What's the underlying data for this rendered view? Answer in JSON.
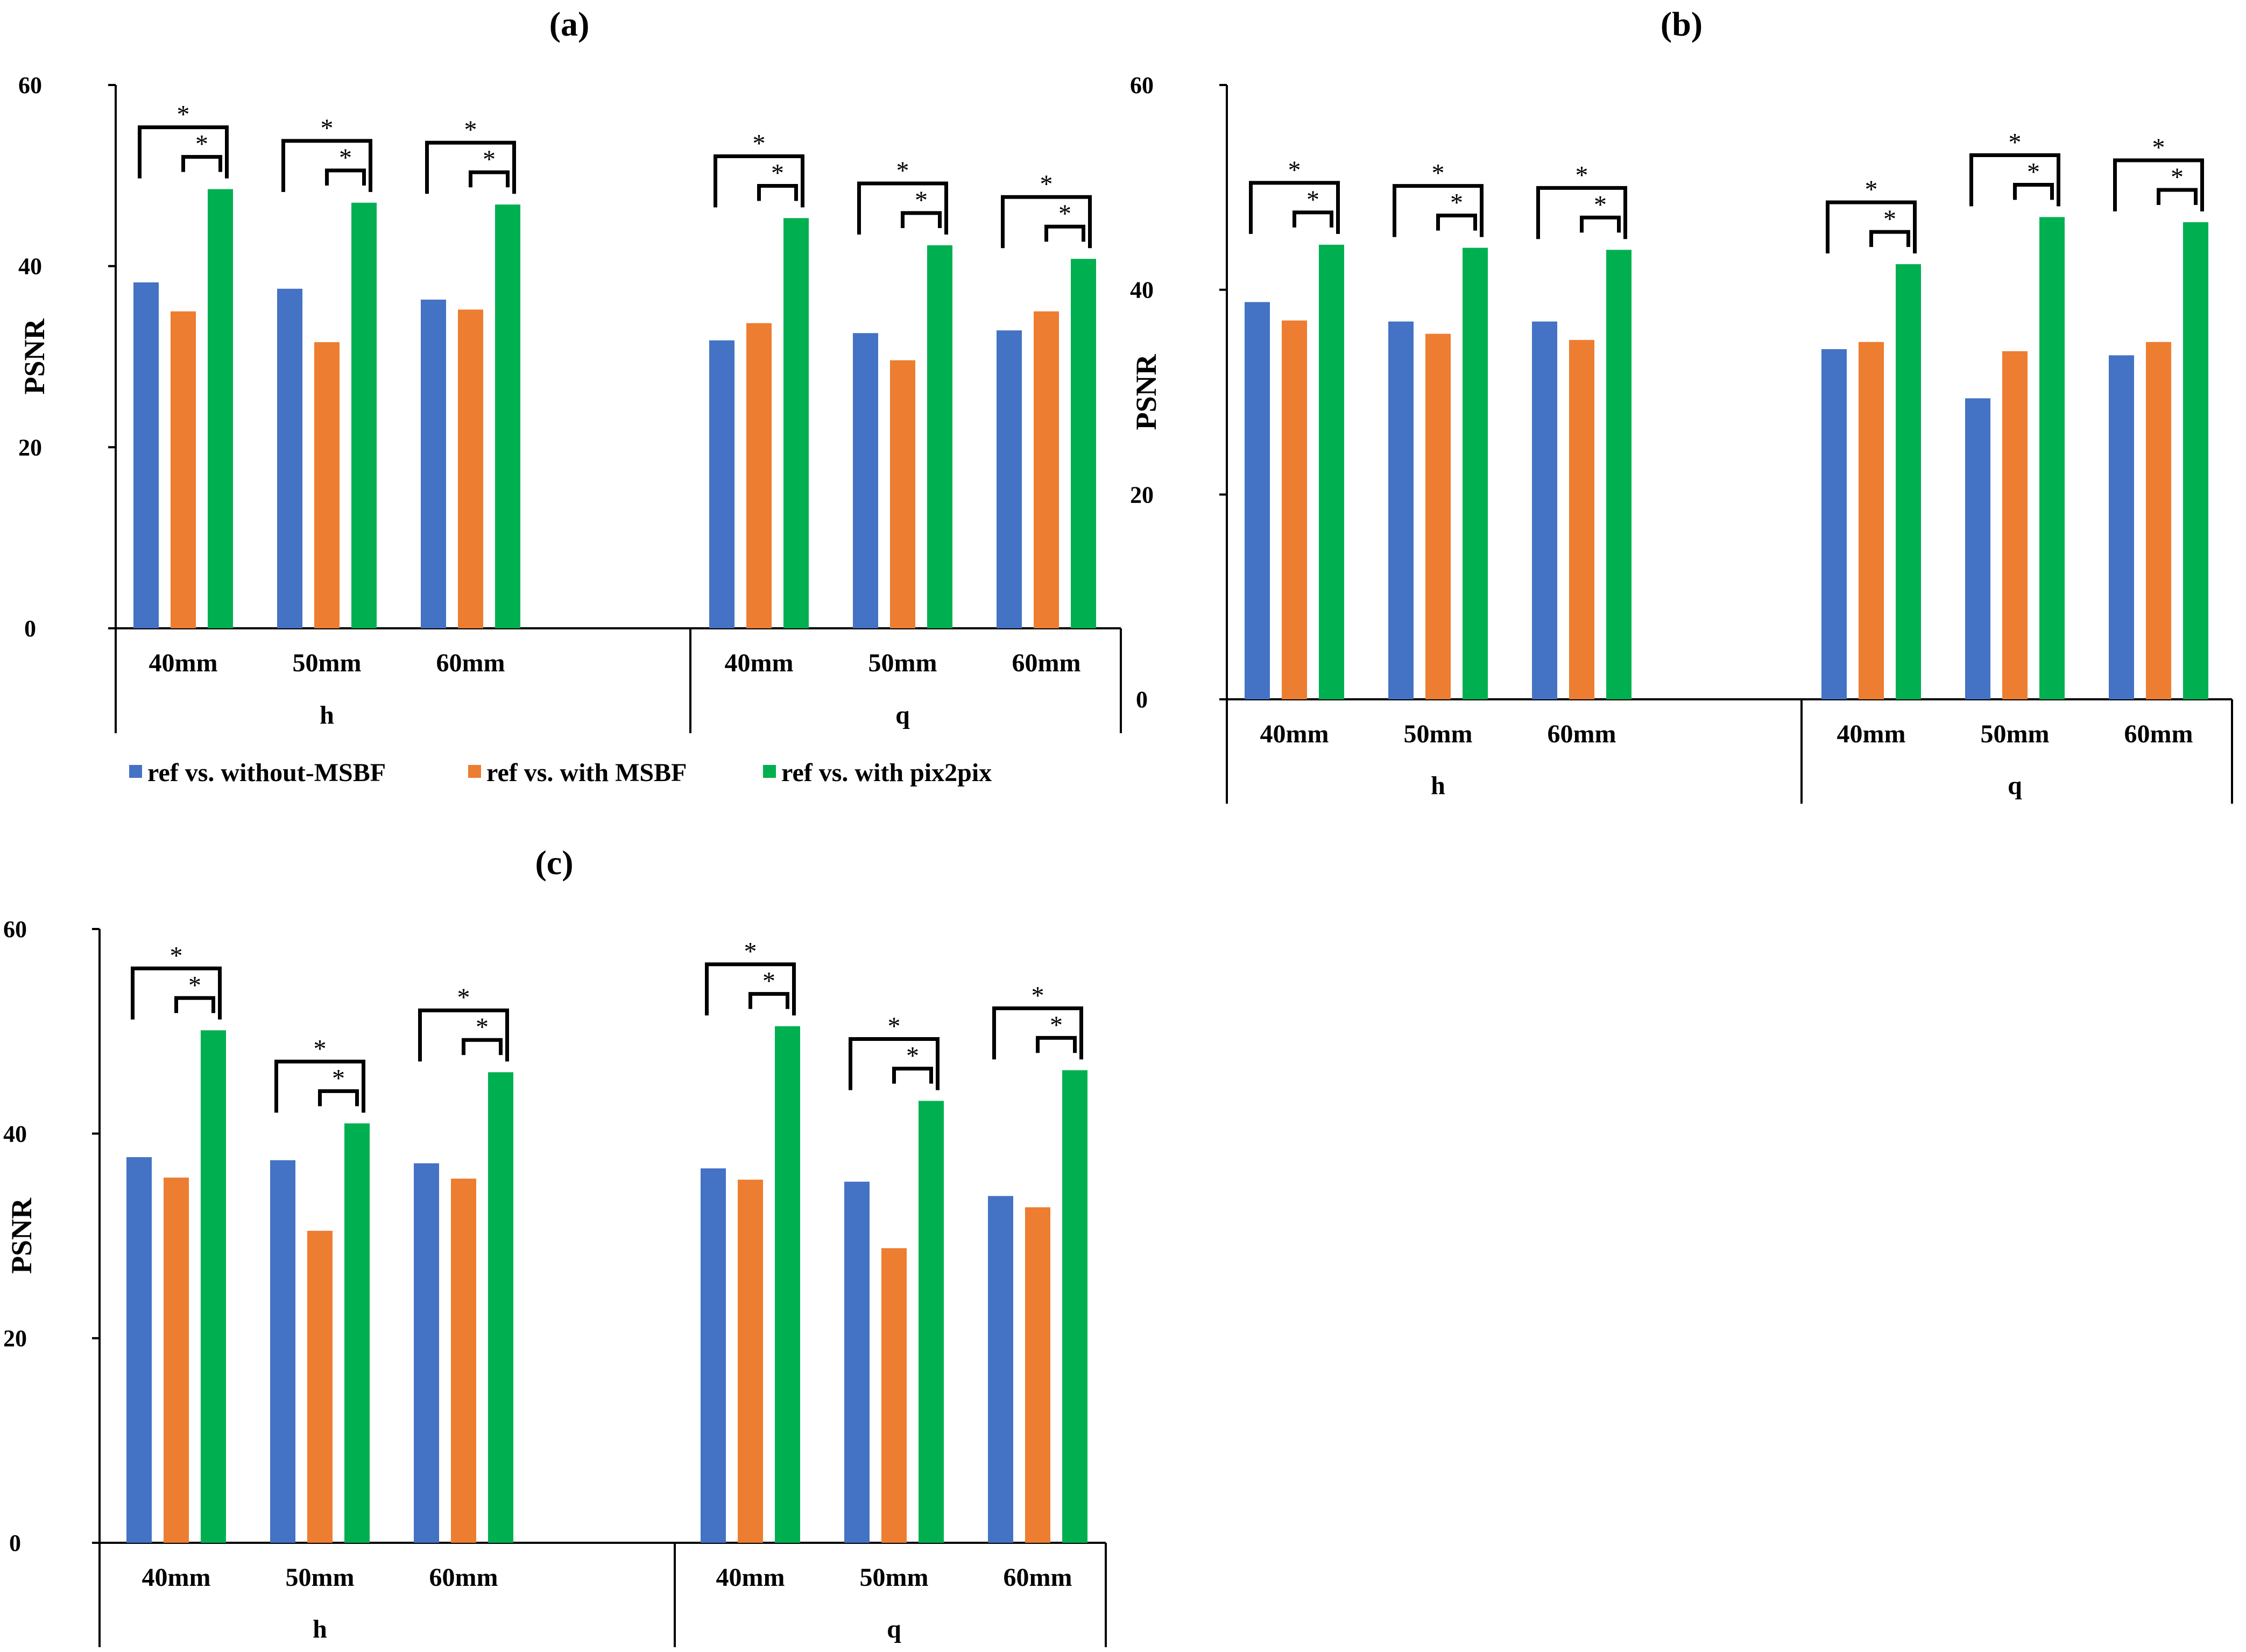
{
  "chart_data": [
    {
      "type": "bar",
      "panel_label": "(a)",
      "ylabel": "PSNR",
      "ylim": [
        0,
        60
      ],
      "yticks": [
        0,
        20,
        40,
        60
      ],
      "groups": [
        {
          "name": "h",
          "categories": [
            "40mm",
            "50mm",
            "60mm"
          ]
        },
        {
          "name": "q",
          "categories": [
            "40mm",
            "50mm",
            "60mm"
          ]
        }
      ],
      "series": [
        {
          "name": "ref vs. without-MSBF",
          "color": "#4472C4",
          "values": [
            38.2,
            37.5,
            36.3,
            31.8,
            32.6,
            32.9
          ]
        },
        {
          "name": "ref vs. with MSBF",
          "color": "#ED7D31",
          "values": [
            35.0,
            31.6,
            35.2,
            33.7,
            29.6,
            35.0
          ]
        },
        {
          "name": "ref vs. with pix2pix",
          "color": "#00B050",
          "values": [
            48.5,
            47.0,
            46.8,
            45.3,
            42.3,
            40.8
          ]
        }
      ],
      "significance_marker": "*",
      "legend_position": "bottom"
    },
    {
      "type": "bar",
      "panel_label": "(b)",
      "ylabel": "PSNR",
      "ylim": [
        0,
        60
      ],
      "yticks": [
        0,
        20,
        40,
        60
      ],
      "groups": [
        {
          "name": "h",
          "categories": [
            "40mm",
            "50mm",
            "60mm"
          ]
        },
        {
          "name": "q",
          "categories": [
            "40mm",
            "50mm",
            "60mm"
          ]
        }
      ],
      "series": [
        {
          "name": "ref vs. without-MSBF",
          "color": "#4472C4",
          "values": [
            38.8,
            36.9,
            36.9,
            34.2,
            29.4,
            33.6
          ]
        },
        {
          "name": "ref vs. with MSBF",
          "color": "#ED7D31",
          "values": [
            37.0,
            35.7,
            35.1,
            34.9,
            34.0,
            34.9
          ]
        },
        {
          "name": "ref vs. with pix2pix",
          "color": "#00B050",
          "values": [
            44.4,
            44.1,
            43.9,
            42.5,
            47.1,
            46.6
          ]
        }
      ],
      "significance_marker": "*"
    },
    {
      "type": "bar",
      "panel_label": "(c)",
      "ylabel": "PSNR",
      "ylim": [
        0,
        60
      ],
      "yticks": [
        0,
        20,
        40,
        60
      ],
      "groups": [
        {
          "name": "h",
          "categories": [
            "40mm",
            "50mm",
            "60mm"
          ]
        },
        {
          "name": "q",
          "categories": [
            "40mm",
            "50mm",
            "60mm"
          ]
        }
      ],
      "series": [
        {
          "name": "ref vs. without-MSBF",
          "color": "#4472C4",
          "values": [
            37.7,
            37.4,
            37.1,
            36.6,
            35.3,
            33.9
          ]
        },
        {
          "name": "ref vs. with MSBF",
          "color": "#ED7D31",
          "values": [
            35.7,
            30.5,
            35.6,
            35.5,
            28.8,
            32.8
          ]
        },
        {
          "name": "ref vs. with pix2pix",
          "color": "#00B050",
          "values": [
            50.1,
            41.0,
            46.0,
            50.5,
            43.2,
            46.2
          ]
        }
      ],
      "significance_marker": "*"
    }
  ]
}
